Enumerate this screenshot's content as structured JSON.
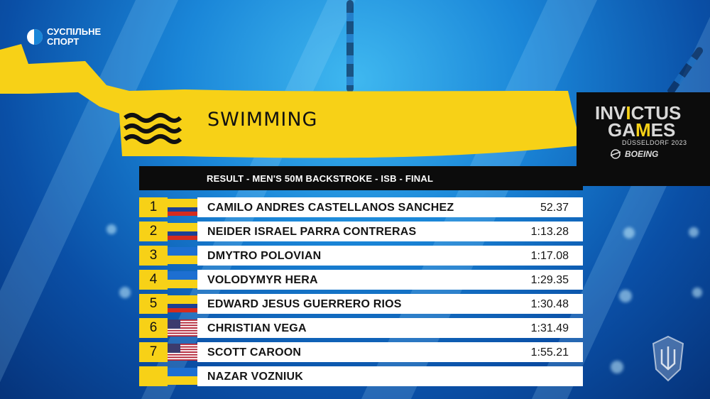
{
  "broadcaster": {
    "line1": "СУСПІЛЬНЕ",
    "line2": "СПОРТ",
    "icon": "suspilne-logo-icon"
  },
  "header": {
    "sport": "SWIMMING",
    "icon": "swimming-waves-icon"
  },
  "event_logo": {
    "line1_a": "INV",
    "line1_b": "I",
    "line1_c": "CTUS",
    "line2_a": "GA",
    "line2_b": "M",
    "line2_c": "ES",
    "subtitle": "DÜSSELDORF 2023",
    "sponsor": "BOEING"
  },
  "result_title": "RESULT - MEN'S 50M BACKSTROKE - ISB - FINAL",
  "results": [
    {
      "rank": "1",
      "flag": "colombia-flag-icon",
      "name": "CAMILO ANDRES CASTELLANOS SANCHEZ",
      "time": "52.37"
    },
    {
      "rank": "2",
      "flag": "colombia-flag-icon",
      "name": "NEIDER ISRAEL PARRA CONTRERAS",
      "time": "1:13.28"
    },
    {
      "rank": "3",
      "flag": "ukraine-flag-icon",
      "name": "DMYTRO POLOVIAN",
      "time": "1:17.08"
    },
    {
      "rank": "4",
      "flag": "ukraine-flag-icon",
      "name": "VOLODYMYR HERA",
      "time": "1:29.35"
    },
    {
      "rank": "5",
      "flag": "colombia-flag-icon",
      "name": "EDWARD JESUS GUERRERO RIOS",
      "time": "1:30.48"
    },
    {
      "rank": "6",
      "flag": "usa-flag-icon",
      "name": "CHRISTIAN VEGA",
      "time": "1:31.49"
    },
    {
      "rank": "7",
      "flag": "usa-flag-icon",
      "name": "SCOTT CAROON",
      "time": "1:55.21"
    },
    {
      "rank": "",
      "flag": "ukraine-flag-icon",
      "name": "NAZAR VOZNIUK",
      "time": ""
    }
  ],
  "colors": {
    "accent_yellow": "#f7d117",
    "panel_black": "#0c0c0c",
    "row_white": "#ffffff"
  }
}
